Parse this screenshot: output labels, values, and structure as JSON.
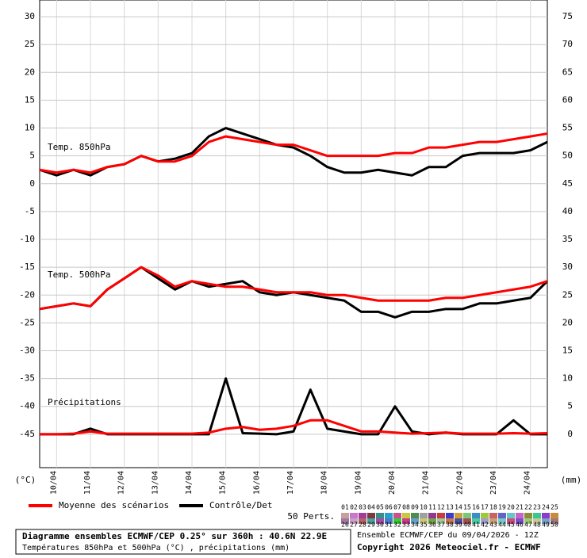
{
  "chart_data": {
    "type": "line",
    "x": [
      9.5,
      10,
      10.5,
      11,
      11.5,
      12,
      12.5,
      13,
      13.5,
      14,
      14.5,
      15,
      15.5,
      16,
      16.5,
      17,
      17.5,
      18,
      18.5,
      19,
      19.5,
      20,
      20.5,
      21,
      21.5,
      22,
      22.5,
      23,
      23.5,
      24,
      24.5
    ],
    "xlim": [
      9.5,
      24.5
    ],
    "xticks": [
      {
        "value": 10,
        "label": "10/04"
      },
      {
        "value": 11,
        "label": "11/04"
      },
      {
        "value": 12,
        "label": "12/04"
      },
      {
        "value": 13,
        "label": "13/04"
      },
      {
        "value": 14,
        "label": "14/04"
      },
      {
        "value": 15,
        "label": "15/04"
      },
      {
        "value": 16,
        "label": "16/04"
      },
      {
        "value": 17,
        "label": "17/04"
      },
      {
        "value": 18,
        "label": "18/04"
      },
      {
        "value": 19,
        "label": "19/04"
      },
      {
        "value": 20,
        "label": "20/04"
      },
      {
        "value": 21,
        "label": "21/04"
      },
      {
        "value": 22,
        "label": "22/04"
      },
      {
        "value": 23,
        "label": "23/04"
      },
      {
        "value": 24,
        "label": "24/04"
      }
    ],
    "ylim": [
      -51,
      33
    ],
    "yticks": [
      30,
      25,
      20,
      15,
      10,
      5,
      0,
      -5,
      -10,
      -15,
      -20,
      -25,
      -30,
      -35,
      -40,
      -45
    ],
    "y2lim": [
      -6,
      78
    ],
    "y2ticks": [
      75,
      70,
      65,
      60,
      55,
      50,
      45,
      40,
      35,
      30,
      25,
      20,
      15,
      10,
      5,
      0
    ],
    "ylabel": "(°C)",
    "y2label": "(mm)",
    "grid": true,
    "annotations": [
      "Temp. 850hPa",
      "Temp. 500hPa",
      "Précipitations"
    ],
    "series": [
      {
        "name": "Moyenne des scénarios",
        "color": "#ff0000",
        "values": [
          2.5,
          2,
          2.5,
          2,
          3,
          3.5,
          5,
          4,
          4,
          5,
          7.5,
          8.5,
          8,
          7.5,
          7,
          7,
          6,
          5,
          5,
          5,
          5,
          5.5,
          5.5,
          6.5,
          6.5,
          7,
          7.5,
          7.5,
          8,
          8.5,
          9
        ]
      },
      {
        "name": "Contrôle/Det",
        "color": "#000000",
        "values": [
          2.5,
          1.5,
          2.5,
          1.5,
          3,
          3.5,
          5,
          4,
          4.5,
          5.5,
          8.5,
          10,
          9,
          8,
          7,
          6.5,
          5,
          3,
          2,
          2,
          2.5,
          2,
          1.5,
          3,
          3,
          5,
          5.5,
          5.5,
          5.5,
          6,
          7.5
        ]
      },
      {
        "name": "Moyenne des scénarios",
        "color": "#ff0000",
        "values": [
          -22.5,
          -22,
          -21.5,
          -22,
          -19,
          -17,
          -15,
          -16.5,
          -18.5,
          -17.5,
          -18,
          -18.5,
          -18.5,
          -19,
          -19.5,
          -19.5,
          -19.5,
          -20,
          -20,
          -20.5,
          -21,
          -21,
          -21,
          -21,
          -20.5,
          -20.5,
          -20,
          -19.5,
          -19,
          -18.5,
          -17.5
        ]
      },
      {
        "name": "Contrôle/Det",
        "color": "#000000",
        "values": [
          -22.5,
          -22,
          -21.5,
          -22,
          -19,
          -17,
          -15,
          -17,
          -19,
          -17.5,
          -18.5,
          -18,
          -17.5,
          -19.5,
          -20,
          -19.5,
          -20,
          -20.5,
          -21,
          -23,
          -23,
          -24,
          -23,
          -23,
          -22.5,
          -22.5,
          -21.5,
          -21.5,
          -21,
          -20.5,
          -17.5
        ]
      },
      {
        "name": "Moyenne des scénarios",
        "color": "#ff0000",
        "axis": "y2",
        "values": [
          0,
          0,
          0.1,
          0.5,
          0.1,
          0.1,
          0.1,
          0.1,
          0.1,
          0.1,
          0.3,
          1,
          1.3,
          0.8,
          1,
          1.5,
          2.5,
          2.5,
          1.5,
          0.5,
          0.5,
          0.3,
          0.1,
          0.2,
          0.3,
          0.1,
          0.1,
          0.1,
          0.2,
          0.1,
          0.2
        ]
      },
      {
        "name": "Contrôle/Det",
        "color": "#000000",
        "axis": "y2",
        "values": [
          0,
          0,
          0,
          1,
          0,
          0,
          0,
          0,
          0,
          0,
          0,
          10,
          0.2,
          0.1,
          0,
          0.5,
          8,
          1,
          0.5,
          0,
          0,
          5,
          0.5,
          0,
          0.3,
          0,
          0,
          0,
          2.5,
          0,
          0
        ]
      }
    ],
    "perts_title": "50 Perts.",
    "perts": [
      {
        "label": "01",
        "color": "#c8a0a0"
      },
      {
        "label": "02",
        "color": "#c878c8"
      },
      {
        "label": "03",
        "color": "#a03ca0"
      },
      {
        "label": "04",
        "color": "#783c3c"
      },
      {
        "label": "05",
        "color": "#3c8c8c"
      },
      {
        "label": "06",
        "color": "#28a0c8"
      },
      {
        "label": "07",
        "color": "#c8508c"
      },
      {
        "label": "08",
        "color": "#c8c83c"
      },
      {
        "label": "09",
        "color": "#508c50"
      },
      {
        "label": "10",
        "color": "#a0a0a0"
      },
      {
        "label": "11",
        "color": "#8c3c8c"
      },
      {
        "label": "12",
        "color": "#c83c3c"
      },
      {
        "label": "13",
        "color": "#3c3cc8"
      },
      {
        "label": "14",
        "color": "#c8a03c"
      },
      {
        "label": "15",
        "color": "#78c878"
      },
      {
        "label": "16",
        "color": "#3c8cc8"
      },
      {
        "label": "17",
        "color": "#a0c83c"
      },
      {
        "label": "18",
        "color": "#c86464"
      },
      {
        "label": "19",
        "color": "#6464c8"
      },
      {
        "label": "20",
        "color": "#64c8c8"
      },
      {
        "label": "21",
        "color": "#c864c8"
      },
      {
        "label": "22",
        "color": "#8c8c3c"
      },
      {
        "label": "23",
        "color": "#3cc88c"
      },
      {
        "label": "24",
        "color": "#8c3cc8"
      },
      {
        "label": "25",
        "color": "#c88c3c"
      },
      {
        "label": "26",
        "color": "#a078a0"
      },
      {
        "label": "27",
        "color": "#c8a0c8"
      },
      {
        "label": "28",
        "color": "#b46464"
      },
      {
        "label": "29",
        "color": "#50a0a0"
      },
      {
        "label": "30",
        "color": "#a050a0"
      },
      {
        "label": "31",
        "color": "#5078c8"
      },
      {
        "label": "32",
        "color": "#3cc83c"
      },
      {
        "label": "33",
        "color": "#c83c8c"
      },
      {
        "label": "34",
        "color": "#64a0c8"
      },
      {
        "label": "35",
        "color": "#c8c878"
      },
      {
        "label": "36",
        "color": "#78a050"
      },
      {
        "label": "37",
        "color": "#a0c8a0"
      },
      {
        "label": "38",
        "color": "#c87850"
      },
      {
        "label": "39",
        "color": "#5050a0"
      },
      {
        "label": "40",
        "color": "#a05050"
      },
      {
        "label": "41",
        "color": "#50c8a0"
      },
      {
        "label": "42",
        "color": "#a0a0c8"
      },
      {
        "label": "43",
        "color": "#c8a078"
      },
      {
        "label": "44",
        "color": "#78c8c8"
      },
      {
        "label": "45",
        "color": "#c85078"
      },
      {
        "label": "46",
        "color": "#7850c8"
      },
      {
        "label": "47",
        "color": "#a0c878"
      },
      {
        "label": "48",
        "color": "#c8c8a0"
      },
      {
        "label": "49",
        "color": "#78a0c8"
      },
      {
        "label": "50",
        "color": "#a07878"
      }
    ],
    "footer": [
      "Diagramme ensembles ECMWF/CEP 0.25° sur 360h : 40.6N 22.9E",
      "Températures 850hPa et 500hPa (°C) , précipitations (mm)",
      "Ensemble ECMWF/CEP du 09/04/2026 - 12Z",
      "Copyright 2026 Meteociel.fr - ECMWF"
    ]
  }
}
